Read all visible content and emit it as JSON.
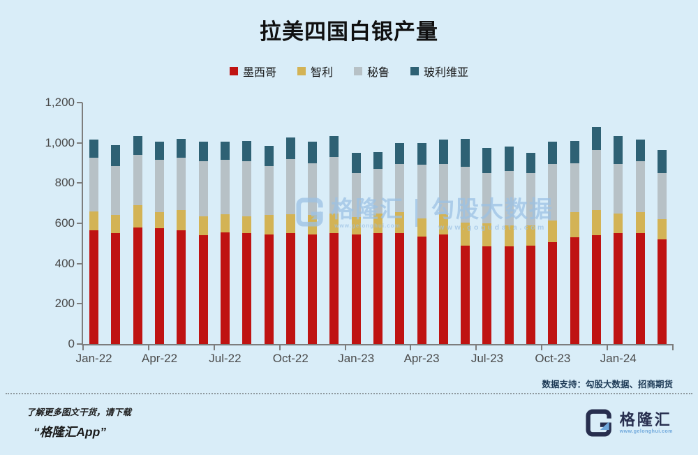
{
  "title": "拉美四国白银产量",
  "chart_data": {
    "type": "bar",
    "stacked": true,
    "title": "拉美四国白银产量",
    "ylim": [
      0,
      1200
    ],
    "grid": false,
    "legend_position": "top",
    "months": [
      "Jan-22",
      "Feb-22",
      "Mar-22",
      "Apr-22",
      "May-22",
      "Jun-22",
      "Jul-22",
      "Aug-22",
      "Sep-22",
      "Oct-22",
      "Nov-22",
      "Dec-22",
      "Jan-23",
      "Feb-23",
      "Mar-23",
      "Apr-23",
      "May-23",
      "Jun-23",
      "Jul-23",
      "Aug-23",
      "Sep-23",
      "Oct-23",
      "Nov-23",
      "Dec-23",
      "Jan-24",
      "Feb-24",
      "Mar-24"
    ],
    "x_tick_labels": [
      "Jan-22",
      "Apr-22",
      "Jul-22",
      "Oct-22",
      "Jan-23",
      "Apr-23",
      "Jul-23",
      "Oct-23",
      "Jan-24"
    ],
    "y_tick_labels": [
      "0",
      "200",
      "400",
      "600",
      "800",
      "1,000",
      "1,200"
    ],
    "series": [
      {
        "key": "mexico",
        "name": "墨西哥",
        "color": "#bf1312",
        "values": [
          565,
          550,
          580,
          575,
          565,
          540,
          555,
          550,
          545,
          550,
          545,
          550,
          545,
          550,
          550,
          535,
          545,
          490,
          485,
          485,
          490,
          505,
          530,
          540,
          550,
          550,
          520
        ]
      },
      {
        "key": "chile",
        "name": "智利",
        "color": "#d3b355",
        "values": [
          95,
          90,
          110,
          80,
          100,
          95,
          90,
          85,
          95,
          95,
          95,
          100,
          85,
          100,
          105,
          90,
          100,
          115,
          115,
          105,
          100,
          110,
          125,
          125,
          100,
          105,
          100
        ]
      },
      {
        "key": "peru",
        "name": "秘鲁",
        "color": "#b7c1c6",
        "values": [
          265,
          245,
          250,
          260,
          260,
          275,
          270,
          275,
          245,
          275,
          260,
          280,
          220,
          220,
          240,
          265,
          250,
          275,
          250,
          270,
          260,
          280,
          245,
          300,
          245,
          255,
          230
        ]
      },
      {
        "key": "bolivia",
        "name": "玻利维亚",
        "color": "#2e6174",
        "values": [
          90,
          105,
          95,
          90,
          95,
          95,
          90,
          100,
          100,
          105,
          105,
          105,
          100,
          85,
          105,
          110,
          120,
          140,
          125,
          120,
          100,
          110,
          110,
          115,
          140,
          105,
          115
        ]
      }
    ]
  },
  "watermark": {
    "brand": "格隆汇",
    "brand_url": "www.gelonghui.com",
    "partner": "勾股大数据",
    "partner_url": "www.gogudata.com"
  },
  "footer": {
    "data_support": "数据支持：勾股大数据、招商期货",
    "left_line1": "了解更多图文干货，请下载",
    "left_line2": "“格隆汇App”",
    "logo_name": "格隆汇",
    "logo_url": "www.gelonghui.com"
  },
  "colors": {
    "background": "#d9edf8",
    "axis": "#7d7d7d",
    "tick_label": "#4a4a4a",
    "watermark": "#9cc1e4",
    "logo_navy": "#272e4e",
    "logo_blue": "#6fa8dc"
  }
}
